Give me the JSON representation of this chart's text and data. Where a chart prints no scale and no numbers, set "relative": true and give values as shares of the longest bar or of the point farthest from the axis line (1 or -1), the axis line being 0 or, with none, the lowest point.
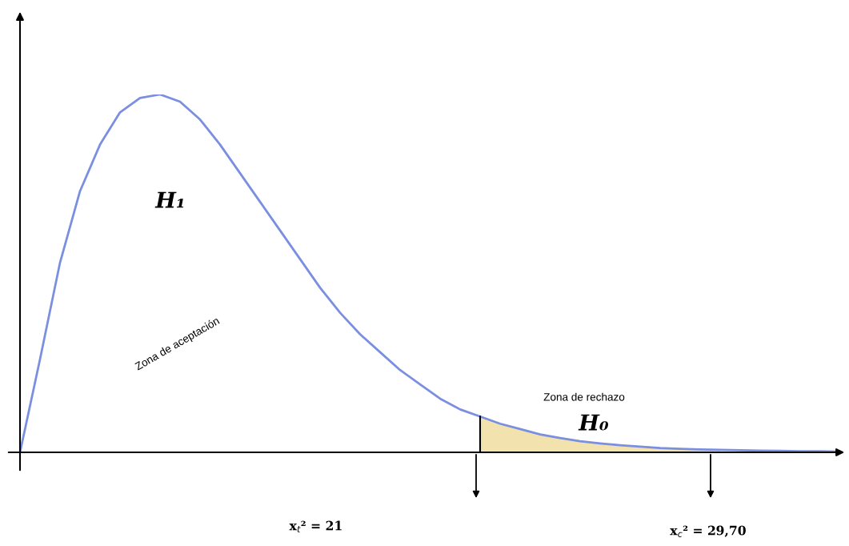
{
  "chart_data": {
    "type": "line",
    "relative": true,
    "categories": [
      null,
      null,
      null,
      null,
      null,
      null,
      null,
      null,
      null,
      null,
      null,
      null,
      null,
      null,
      null,
      null,
      null,
      null,
      null,
      null,
      null,
      null,
      null,
      null,
      null,
      null,
      null,
      null,
      null,
      null,
      null,
      null,
      null,
      null,
      null,
      null,
      null,
      null,
      null,
      null,
      null,
      null
    ],
    "series": [
      {
        "color": "#7b8fe0",
        "values": [
          0,
          0.26,
          0.53,
          0.73,
          0.86,
          0.95,
          0.99,
          1.0,
          0.98,
          0.93,
          0.86,
          0.78,
          0.7,
          0.62,
          0.54,
          0.46,
          0.39,
          0.33,
          0.28,
          0.23,
          0.19,
          0.15,
          0.12,
          0.1,
          0.08,
          0.065,
          0.05,
          0.04,
          0.031,
          0.025,
          0.02,
          0.016,
          0.012,
          0.01,
          0.008,
          0.007,
          0.006,
          0.005,
          0.004,
          0.003,
          0.003,
          0.002
        ]
      },
      {
        "type": "area",
        "color": "#f2e2ae",
        "values": [
          null,
          null,
          null,
          null,
          null,
          null,
          null,
          null,
          null,
          null,
          null,
          null,
          null,
          null,
          null,
          null,
          null,
          null,
          null,
          null,
          null,
          null,
          null,
          0.1,
          0.08,
          0.065,
          0.05,
          0.04,
          0.031,
          0.025,
          0.02,
          0.016,
          0.012,
          0.01,
          0.008,
          0.007,
          null,
          null,
          null,
          null,
          null,
          null
        ]
      }
    ],
    "annotations": [
      "H₁",
      "Zona de aceptación",
      "Zona de rechazo",
      "H₀",
      "x$_{t}$² = 21",
      "x$_{c}$² = 29,70"
    ]
  }
}
